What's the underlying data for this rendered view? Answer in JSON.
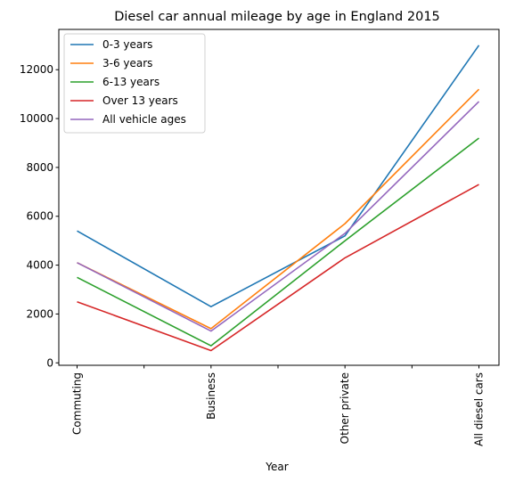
{
  "chart_data": {
    "type": "line",
    "title": "Diesel car annual mileage by age in England 2015",
    "xlabel": "Year",
    "ylabel": "",
    "categories": [
      "Commuting",
      "Business",
      "Other private",
      "All diesel cars"
    ],
    "y_ticks": [
      0,
      2000,
      4000,
      6000,
      8000,
      10000,
      12000
    ],
    "ylim": [
      -100,
      13650
    ],
    "grid": false,
    "legend_position": "top-left",
    "series": [
      {
        "name": "0-3 years",
        "color": "#1f77b4",
        "values": [
          5400,
          2300,
          5200,
          13000
        ]
      },
      {
        "name": "3-6 years",
        "color": "#ff7f0e",
        "values": [
          4100,
          1400,
          5700,
          11200
        ]
      },
      {
        "name": "6-13 years",
        "color": "#2ca02c",
        "values": [
          3500,
          700,
          5000,
          9200
        ]
      },
      {
        "name": "Over 13 years",
        "color": "#d62728",
        "values": [
          2500,
          500,
          4300,
          7300
        ]
      },
      {
        "name": "All vehicle ages",
        "color": "#9467bd",
        "values": [
          4100,
          1300,
          5300,
          10700
        ]
      }
    ]
  }
}
